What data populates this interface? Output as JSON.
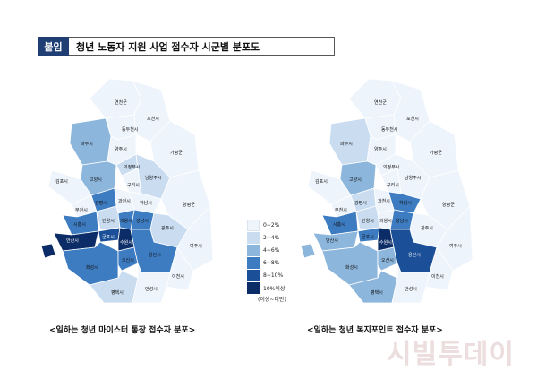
{
  "header": {
    "tag": "붙임",
    "title": "청년 노동자 지원 사업 접수자 시군별 분포도"
  },
  "legend": {
    "items": [
      {
        "label": "0~2%",
        "color": "#eef4fb"
      },
      {
        "label": "2~4%",
        "color": "#c9dcf0"
      },
      {
        "label": "4~6%",
        "color": "#8db6dc"
      },
      {
        "label": "6~8%",
        "color": "#3e7cc2"
      },
      {
        "label": "8~10%",
        "color": "#1b4f97"
      },
      {
        "label": "10%이상",
        "color": "#0b2c66"
      }
    ],
    "note": "(이상~미만)"
  },
  "maps": {
    "left": {
      "caption": "<일하는 청년 마이스터 통장 접수자 분포>",
      "labels": [
        "연천군",
        "포천시",
        "동두천시",
        "양주시",
        "파주시",
        "의정부시",
        "가평군",
        "고양시",
        "김포시",
        "남양주시",
        "구리시",
        "부천시",
        "하남시",
        "양평군",
        "광명시",
        "과천시",
        "성남시",
        "광주시",
        "시흥시",
        "안양시",
        "의왕시",
        "안산시",
        "군포시",
        "수원시",
        "여주시",
        "화성시",
        "오산시",
        "용인시",
        "이천시",
        "평택시",
        "안성시"
      ]
    },
    "right": {
      "caption": "<일하는 청년 복지포인트 접수자 분포>",
      "labels": [
        "연천군",
        "포천시",
        "동두천시",
        "양주시",
        "파주시",
        "의정부시",
        "가평군",
        "고양시",
        "김포시",
        "남양주시",
        "구리시",
        "부천시",
        "하남시",
        "양평군",
        "광명시",
        "과천시",
        "성남시",
        "광주시",
        "시흥시",
        "안양시",
        "의왕시",
        "안산시",
        "군포시",
        "수원시",
        "여주시",
        "화성시",
        "오산시",
        "용인시",
        "이천시",
        "평택시",
        "안성시"
      ]
    }
  },
  "watermark": {
    "text": "시빌투데이"
  }
}
